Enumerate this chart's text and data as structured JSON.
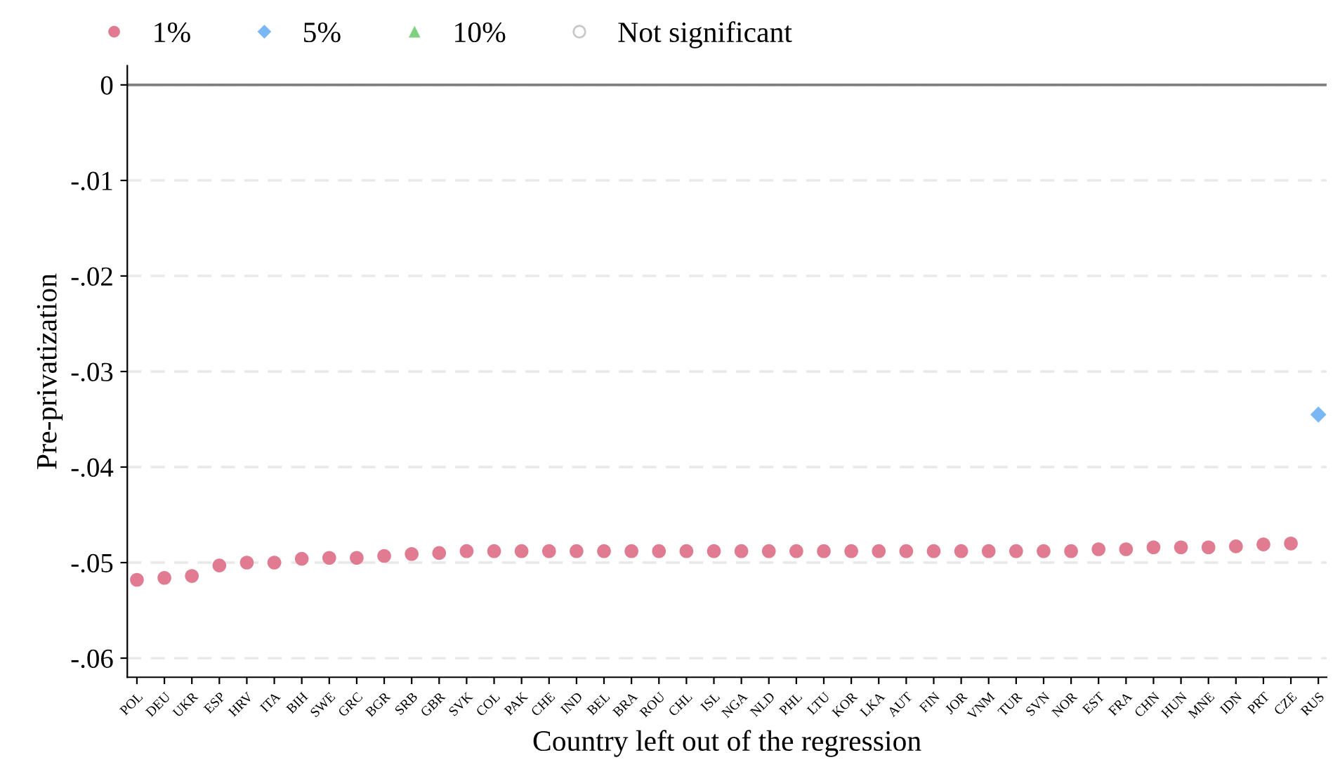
{
  "chart_data": {
    "type": "scatter",
    "xlabel": "Country left out of the regression",
    "ylabel": "Pre-privatization",
    "categories": [
      "POL",
      "DEU",
      "UKR",
      "ESP",
      "HRV",
      "ITA",
      "BIH",
      "SWE",
      "GRC",
      "BGR",
      "SRB",
      "GBR",
      "SVK",
      "COL",
      "PAK",
      "CHE",
      "IND",
      "BEL",
      "BRA",
      "ROU",
      "CHL",
      "ISL",
      "NGA",
      "NLD",
      "PHL",
      "LTU",
      "KOR",
      "LKA",
      "AUT",
      "FIN",
      "JOR",
      "VNM",
      "TUR",
      "SVN",
      "NOR",
      "EST",
      "FRA",
      "CHN",
      "HUN",
      "MNE",
      "IDN",
      "PRT",
      "CZE",
      "RUS"
    ],
    "series": [
      {
        "name": "1%",
        "color": "#e07b91",
        "marker": "circle",
        "values": [
          -0.0518,
          -0.0516,
          -0.0514,
          -0.0503,
          -0.05,
          -0.05,
          -0.0496,
          -0.0495,
          -0.0495,
          -0.0493,
          -0.0491,
          -0.049,
          -0.0488,
          -0.0488,
          -0.0488,
          -0.0488,
          -0.0488,
          -0.0488,
          -0.0488,
          -0.0488,
          -0.0488,
          -0.0488,
          -0.0488,
          -0.0488,
          -0.0488,
          -0.0488,
          -0.0488,
          -0.0488,
          -0.0488,
          -0.0488,
          -0.0488,
          -0.0488,
          -0.0488,
          -0.0488,
          -0.0488,
          -0.0486,
          -0.0486,
          -0.0484,
          -0.0484,
          -0.0484,
          -0.0483,
          -0.0481,
          -0.048,
          null
        ]
      },
      {
        "name": "5%",
        "color": "#7ab8f5",
        "marker": "diamond",
        "values": [
          null,
          null,
          null,
          null,
          null,
          null,
          null,
          null,
          null,
          null,
          null,
          null,
          null,
          null,
          null,
          null,
          null,
          null,
          null,
          null,
          null,
          null,
          null,
          null,
          null,
          null,
          null,
          null,
          null,
          null,
          null,
          null,
          null,
          null,
          null,
          null,
          null,
          null,
          null,
          null,
          null,
          null,
          null,
          -0.0345
        ]
      },
      {
        "name": "10%",
        "color": "#7fd17f",
        "marker": "triangle",
        "values": [
          null,
          null,
          null,
          null,
          null,
          null,
          null,
          null,
          null,
          null,
          null,
          null,
          null,
          null,
          null,
          null,
          null,
          null,
          null,
          null,
          null,
          null,
          null,
          null,
          null,
          null,
          null,
          null,
          null,
          null,
          null,
          null,
          null,
          null,
          null,
          null,
          null,
          null,
          null,
          null,
          null,
          null,
          null,
          null
        ]
      },
      {
        "name": "Not significant",
        "color": "#c8c8c8",
        "marker": "hollow circle",
        "values": [
          null,
          null,
          null,
          null,
          null,
          null,
          null,
          null,
          null,
          null,
          null,
          null,
          null,
          null,
          null,
          null,
          null,
          null,
          null,
          null,
          null,
          null,
          null,
          null,
          null,
          null,
          null,
          null,
          null,
          null,
          null,
          null,
          null,
          null,
          null,
          null,
          null,
          null,
          null,
          null,
          null,
          null,
          null,
          null
        ]
      }
    ],
    "ylim": [
      -0.062,
      0.002
    ],
    "yticks": [
      0,
      {
        "value": -0.01,
        "label": "-.01"
      },
      {
        "value": -0.02,
        "label": "-.02"
      },
      {
        "value": -0.03,
        "label": "-.03"
      },
      {
        "value": -0.04,
        "label": "-.04"
      },
      {
        "value": -0.05,
        "label": "-.05"
      },
      {
        "value": -0.06,
        "label": "-.06"
      }
    ],
    "ref_lines": [
      {
        "axis": "y",
        "value": 0,
        "color": "#7f7f7f"
      }
    ],
    "grid": "y",
    "legend": "top"
  }
}
